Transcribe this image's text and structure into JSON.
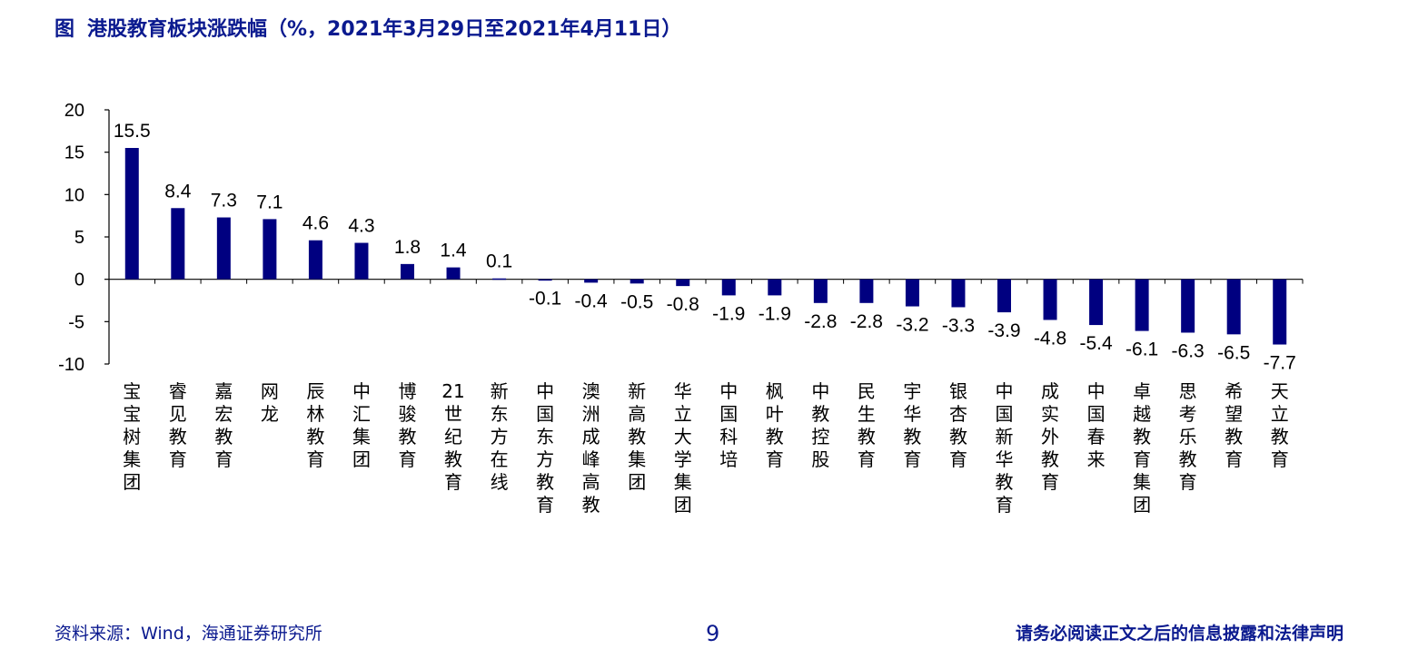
{
  "title": {
    "fig_label": "图",
    "text": "港股教育板块涨跌幅（%，2021年3月29日至2021年4月11日）"
  },
  "colors": {
    "bar": "#000080",
    "title": "#0B1A8F"
  },
  "chart_data": {
    "type": "bar",
    "title": "港股教育板块涨跌幅（%，2021年3月29日至2021年4月11日）",
    "categories": [
      "宝宝树集团",
      "睿见教育",
      "嘉宏教育",
      "网龙",
      "辰林教育",
      "中汇集团",
      "博骏教育",
      "21世纪教育",
      "新东方在线",
      "中国东方教育",
      "澳洲成峰高教",
      "新高教集团",
      "华立大学集团",
      "中国科培",
      "枫叶教育",
      "中教控股",
      "民生教育",
      "宇华教育",
      "银杏教育",
      "中国新华教育",
      "成实外教育",
      "中国春来",
      "卓越教育集团",
      "思考乐教育",
      "希望教育",
      "天立教育"
    ],
    "values": [
      15.5,
      8.4,
      7.3,
      7.1,
      4.6,
      4.3,
      1.8,
      1.4,
      0.1,
      -0.1,
      -0.4,
      -0.5,
      -0.8,
      -1.9,
      -1.9,
      -2.8,
      -2.8,
      -3.2,
      -3.3,
      -3.9,
      -4.8,
      -5.4,
      -6.1,
      -6.3,
      -6.5,
      -7.7
    ],
    "value_labels": [
      "15.5",
      "8.4",
      "7.3",
      "7.1",
      "4.6",
      "4.3",
      "1.8",
      "1.4",
      "0.1",
      "-0.1",
      "-0.4",
      "-0.5",
      "-0.8",
      "-1.9",
      "-1.9",
      "-2.8",
      "-2.8",
      "-3.2",
      "-3.3",
      "-3.9",
      "-4.8",
      "-5.4",
      "-6.1",
      "-6.3",
      "-6.5",
      "-7.7"
    ],
    "ylim": [
      -10,
      20
    ],
    "yticks": [
      "20",
      "15",
      "10",
      "5",
      "0",
      "-5",
      "-10"
    ],
    "grid": false,
    "xlabel": "",
    "ylabel": ""
  },
  "footer": {
    "source": "资料来源：Wind，海通证券研究所",
    "page": "9",
    "disclaimer": "请务必阅读正文之后的信息披露和法律声明"
  }
}
